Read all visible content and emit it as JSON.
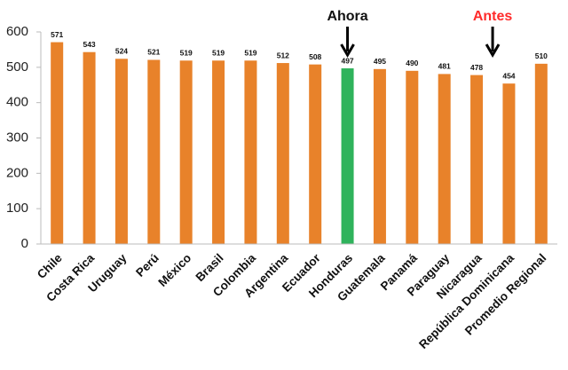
{
  "chart_data": {
    "type": "bar",
    "categories": [
      "Chile",
      "Costa Rica",
      "Uruguay",
      "Perú",
      "México",
      "Brasil",
      "Colombia",
      "Argentina",
      "Ecuador",
      "Honduras",
      "Guatemala",
      "Panamá",
      "Paraguay",
      "Nicaragua",
      "República Dominicana",
      "Promedio Regional"
    ],
    "values": [
      571,
      543,
      524,
      521,
      519,
      519,
      519,
      512,
      508,
      497,
      495,
      490,
      481,
      478,
      454,
      510
    ],
    "colors": [
      "#e8822a",
      "#e8822a",
      "#e8822a",
      "#e8822a",
      "#e8822a",
      "#e8822a",
      "#e8822a",
      "#e8822a",
      "#e8822a",
      "#2fb35c",
      "#e8822a",
      "#e8822a",
      "#e8822a",
      "#e8822a",
      "#e8822a",
      "#e8822a"
    ],
    "ylim": [
      0,
      600
    ],
    "yticks": [
      0,
      100,
      200,
      300,
      400,
      500,
      600
    ],
    "grid": false,
    "annotations": [
      {
        "text": "Ahora",
        "color": "#111111"
      },
      {
        "text": "Antes",
        "color": "#ff2b2b"
      }
    ]
  }
}
